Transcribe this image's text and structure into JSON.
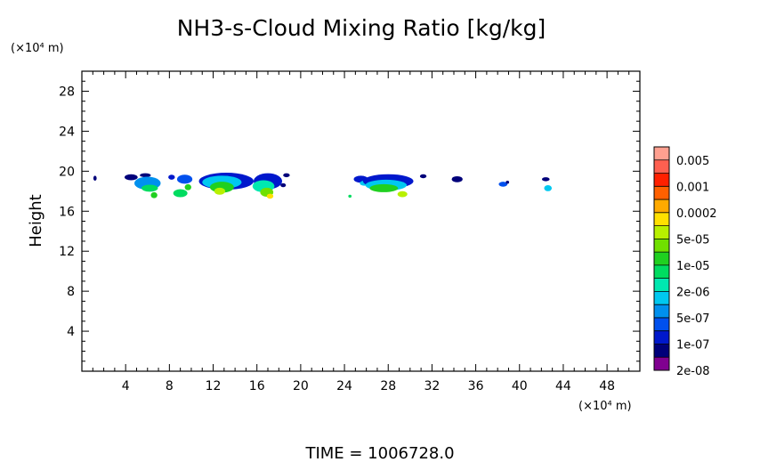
{
  "chart_data": {
    "type": "heatmap",
    "title": "NH3-s-Cloud Mixing Ratio [kg/kg]",
    "ylabel": "Height",
    "y_unit": "(×10⁴ m)",
    "x_unit": "(×10⁴ m)",
    "footer": "TIME = 1006728.0",
    "xlim": [
      0,
      51
    ],
    "ylim": [
      0,
      30
    ],
    "x_ticks": [
      4,
      8,
      12,
      16,
      20,
      24,
      28,
      32,
      36,
      40,
      44,
      48
    ],
    "y_ticks": [
      4,
      8,
      12,
      16,
      20,
      24,
      28
    ],
    "colorbar": {
      "labels": [
        "0.005",
        "0.001",
        "0.0002",
        "5e-05",
        "1e-05",
        "2e-06",
        "5e-07",
        "1e-07",
        "2e-08"
      ],
      "colors": [
        "#800090",
        "#00007a",
        "#0018cc",
        "#0050ee",
        "#0090ee",
        "#00c8f0",
        "#00e8b0",
        "#00dc60",
        "#20d020",
        "#70e000",
        "#b8f000",
        "#ffe000",
        "#ffaa00",
        "#ff6000",
        "#ff2000",
        "#ff6050",
        "#ffa090"
      ]
    },
    "cloud_blobs": [
      {
        "x": 1.2,
        "y": 19.3,
        "w": 0.3,
        "h": 0.5,
        "level": 1
      },
      {
        "x": 4.5,
        "y": 19.4,
        "w": 1.2,
        "h": 0.6,
        "level": 1
      },
      {
        "x": 5.8,
        "y": 19.6,
        "w": 1.0,
        "h": 0.4,
        "level": 1
      },
      {
        "x": 6.0,
        "y": 18.8,
        "w": 2.4,
        "h": 1.3,
        "level": 4
      },
      {
        "x": 6.2,
        "y": 18.3,
        "w": 1.5,
        "h": 0.7,
        "level": 7
      },
      {
        "x": 6.6,
        "y": 17.6,
        "w": 0.6,
        "h": 0.6,
        "level": 8
      },
      {
        "x": 8.2,
        "y": 19.4,
        "w": 0.6,
        "h": 0.5,
        "level": 2
      },
      {
        "x": 9.4,
        "y": 19.2,
        "w": 1.4,
        "h": 0.9,
        "level": 3
      },
      {
        "x": 9.0,
        "y": 17.8,
        "w": 1.3,
        "h": 0.8,
        "level": 7
      },
      {
        "x": 9.7,
        "y": 18.4,
        "w": 0.6,
        "h": 0.6,
        "level": 8
      },
      {
        "x": 13.2,
        "y": 19.0,
        "w": 5.0,
        "h": 1.7,
        "level": 2
      },
      {
        "x": 12.8,
        "y": 18.9,
        "w": 3.6,
        "h": 1.3,
        "level": 5
      },
      {
        "x": 12.8,
        "y": 18.4,
        "w": 2.2,
        "h": 1.1,
        "level": 8
      },
      {
        "x": 12.6,
        "y": 18.0,
        "w": 1.0,
        "h": 0.7,
        "level": 10
      },
      {
        "x": 17.0,
        "y": 19.0,
        "w": 2.6,
        "h": 1.6,
        "level": 2
      },
      {
        "x": 16.6,
        "y": 18.5,
        "w": 2.0,
        "h": 1.2,
        "level": 6
      },
      {
        "x": 16.9,
        "y": 17.9,
        "w": 1.2,
        "h": 0.9,
        "level": 9
      },
      {
        "x": 17.2,
        "y": 17.5,
        "w": 0.6,
        "h": 0.5,
        "level": 11
      },
      {
        "x": 18.7,
        "y": 19.6,
        "w": 0.6,
        "h": 0.4,
        "level": 1
      },
      {
        "x": 18.4,
        "y": 18.6,
        "w": 0.5,
        "h": 0.4,
        "level": 1
      },
      {
        "x": 24.5,
        "y": 17.5,
        "w": 0.3,
        "h": 0.3,
        "level": 7
      },
      {
        "x": 25.5,
        "y": 19.2,
        "w": 1.3,
        "h": 0.7,
        "level": 2
      },
      {
        "x": 25.8,
        "y": 18.8,
        "w": 0.8,
        "h": 0.5,
        "level": 5
      },
      {
        "x": 28.0,
        "y": 19.0,
        "w": 4.6,
        "h": 1.4,
        "level": 2
      },
      {
        "x": 27.8,
        "y": 18.6,
        "w": 3.8,
        "h": 1.1,
        "level": 5
      },
      {
        "x": 27.6,
        "y": 18.3,
        "w": 2.6,
        "h": 0.8,
        "level": 8
      },
      {
        "x": 29.3,
        "y": 17.7,
        "w": 0.9,
        "h": 0.6,
        "level": 10
      },
      {
        "x": 31.2,
        "y": 19.5,
        "w": 0.6,
        "h": 0.4,
        "level": 1
      },
      {
        "x": 34.3,
        "y": 19.2,
        "w": 1.0,
        "h": 0.6,
        "level": 1
      },
      {
        "x": 38.5,
        "y": 18.7,
        "w": 0.8,
        "h": 0.5,
        "level": 3
      },
      {
        "x": 38.9,
        "y": 18.9,
        "w": 0.3,
        "h": 0.3,
        "level": 1
      },
      {
        "x": 42.4,
        "y": 19.2,
        "w": 0.7,
        "h": 0.4,
        "level": 1
      },
      {
        "x": 42.6,
        "y": 18.3,
        "w": 0.7,
        "h": 0.6,
        "level": 5
      }
    ]
  }
}
